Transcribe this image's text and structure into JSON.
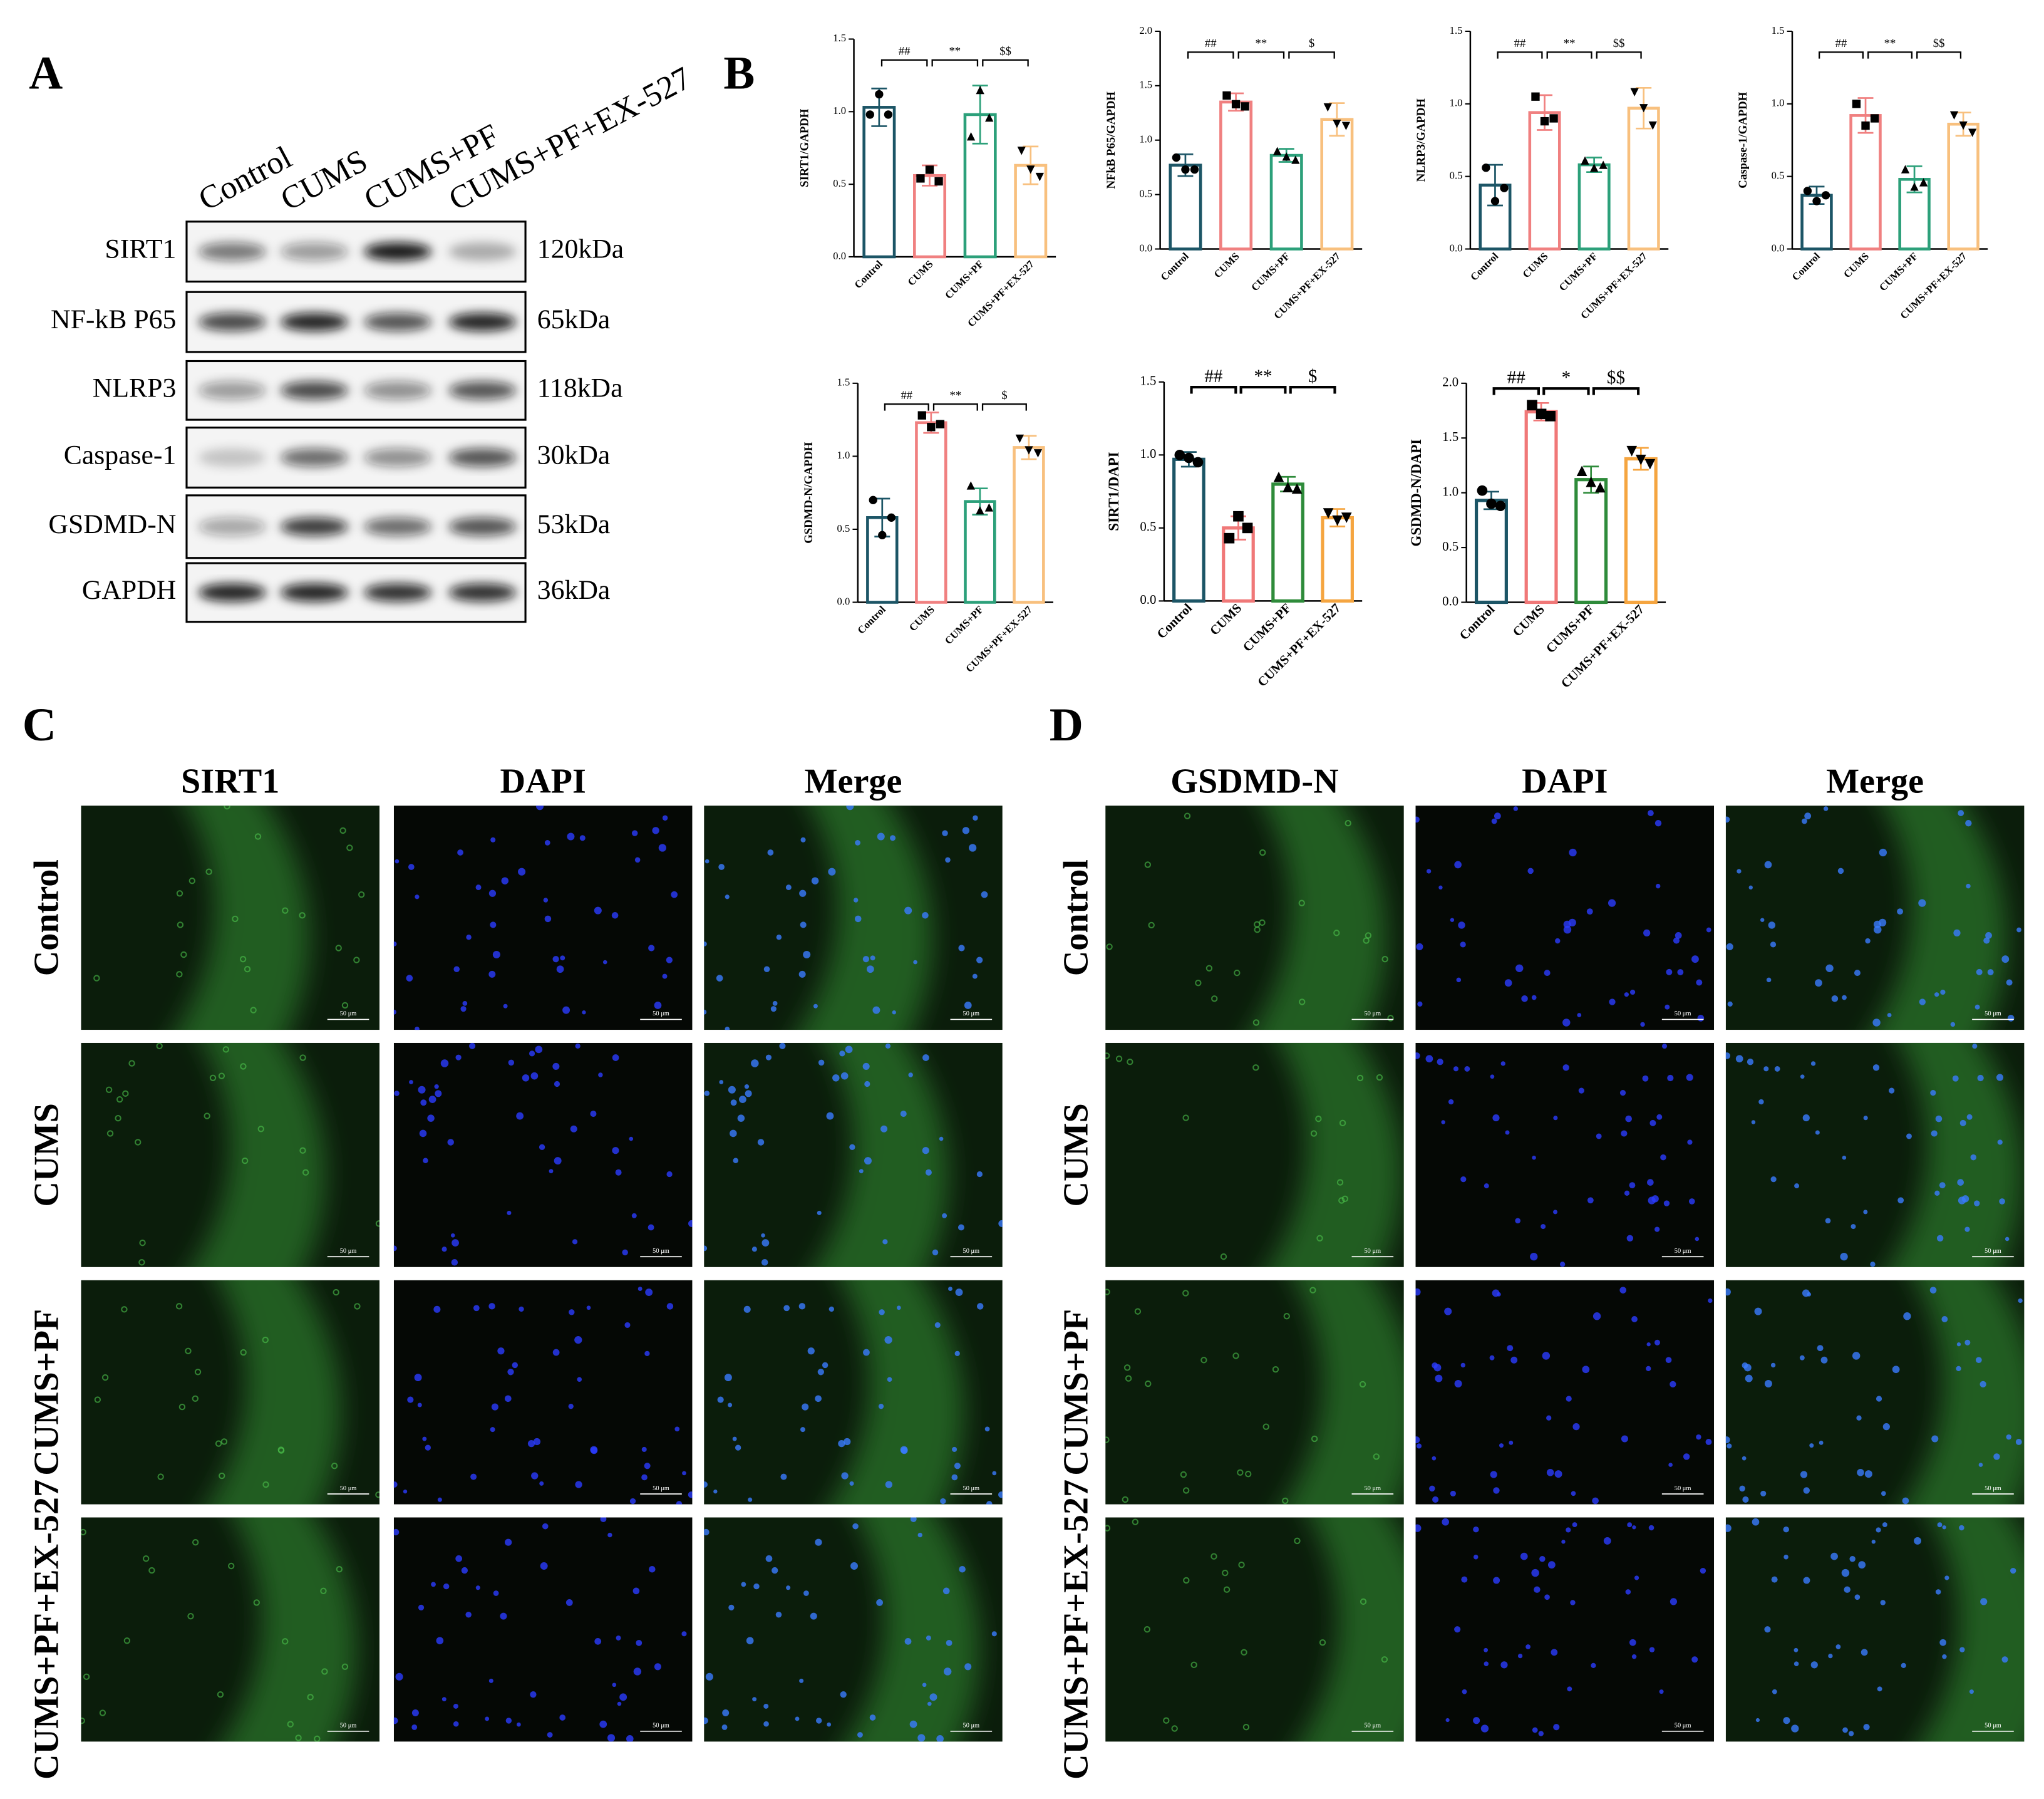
{
  "panel_a": {
    "label": "A",
    "lanes": [
      "Control",
      "CUMS",
      "CUMS+PF",
      "CUMS+PF+EX-527"
    ],
    "rows": [
      {
        "protein": "SIRT1",
        "size": "120kDa"
      },
      {
        "protein": "NF-kB P65",
        "size": "65kDa"
      },
      {
        "protein": "NLRP3",
        "size": "118kDa"
      },
      {
        "protein": "Caspase-1",
        "size": "30kDa"
      },
      {
        "protein": "GSDMD-N",
        "size": "53kDa"
      },
      {
        "protein": "GAPDH",
        "size": "36kDa"
      }
    ]
  },
  "panel_b": {
    "label": "B"
  },
  "chart_data": [
    {
      "type": "bar",
      "y_label": "SIRT1/GAPDH",
      "categories": [
        "Control",
        "CUMS",
        "CUMS+PF",
        "CUMS+PF+EX-527"
      ],
      "values": [
        1.03,
        0.56,
        0.98,
        0.63
      ],
      "errors": [
        0.13,
        0.07,
        0.2,
        0.13
      ],
      "points": [
        [
          0.98,
          1.12,
          0.98
        ],
        [
          0.54,
          0.6,
          0.52
        ],
        [
          0.83,
          1.15,
          0.96
        ],
        [
          0.73,
          0.6,
          0.55
        ]
      ],
      "colors": [
        "#1c5566",
        "#f08080",
        "#2ca07a",
        "#f8c07e"
      ],
      "ylim": [
        0,
        1.5
      ],
      "yticks": [
        {
          "value": 0,
          "label": "0.0"
        },
        0.5,
        {
          "value": 1,
          "label": "1.0"
        },
        1.5
      ],
      "annotations": [
        "##",
        "**",
        "$$"
      ]
    },
    {
      "type": "bar",
      "y_label": "NFkB P65/GAPDH",
      "categories": [
        "Control",
        "CUMS",
        "CUMS+PF",
        "CUMS+PF+EX-527"
      ],
      "values": [
        0.77,
        1.35,
        0.86,
        1.19
      ],
      "errors": [
        0.1,
        0.08,
        0.06,
        0.15
      ],
      "points": [
        [
          0.84,
          0.73,
          0.73
        ],
        [
          1.41,
          1.33,
          1.31
        ],
        [
          0.9,
          0.85,
          0.82
        ],
        [
          1.3,
          1.15,
          1.13
        ]
      ],
      "colors": [
        "#1c5566",
        "#f08080",
        "#2ca07a",
        "#f8c07e"
      ],
      "ylim": [
        0,
        2
      ],
      "yticks": [
        {
          "value": 0,
          "label": "0.0"
        },
        0.5,
        {
          "value": 1,
          "label": "1.0"
        },
        1.5,
        {
          "value": 2,
          "label": "2.0"
        }
      ],
      "annotations": [
        "##",
        "**",
        "$"
      ]
    },
    {
      "type": "bar",
      "y_label": "NLRP3/GAPDH",
      "categories": [
        "Control",
        "CUMS",
        "CUMS+PF",
        "CUMS+PF+EX-527"
      ],
      "values": [
        0.44,
        0.94,
        0.58,
        0.97
      ],
      "errors": [
        0.14,
        0.12,
        0.05,
        0.14
      ],
      "points": [
        [
          0.56,
          0.33,
          0.42
        ],
        [
          1.05,
          0.88,
          0.9
        ],
        [
          0.61,
          0.56,
          0.58
        ],
        [
          1.08,
          0.97,
          0.85
        ]
      ],
      "colors": [
        "#1c5566",
        "#f08080",
        "#2ca07a",
        "#f8c07e"
      ],
      "ylim": [
        0,
        1.5
      ],
      "yticks": [
        {
          "value": 0,
          "label": "0.0"
        },
        0.5,
        {
          "value": 1,
          "label": "1.0"
        },
        1.5
      ],
      "annotations": [
        "##",
        "**",
        "$$"
      ]
    },
    {
      "type": "bar",
      "y_label": "Caspase-1/GAPDH",
      "categories": [
        "Control",
        "CUMS",
        "CUMS+PF",
        "CUMS+PF+EX-527"
      ],
      "values": [
        0.37,
        0.92,
        0.48,
        0.86
      ],
      "errors": [
        0.06,
        0.12,
        0.09,
        0.08
      ],
      "points": [
        [
          0.4,
          0.33,
          0.37
        ],
        [
          1.0,
          0.85,
          0.9
        ],
        [
          0.55,
          0.43,
          0.46
        ],
        [
          0.92,
          0.85,
          0.8
        ]
      ],
      "colors": [
        "#1c5566",
        "#f08080",
        "#2ca07a",
        "#f8c07e"
      ],
      "ylim": [
        0,
        1.5
      ],
      "yticks": [
        {
          "value": 0,
          "label": "0.0"
        },
        0.5,
        {
          "value": 1,
          "label": "1.0"
        },
        1.5
      ],
      "annotations": [
        "##",
        "**",
        "$$"
      ]
    },
    {
      "type": "bar",
      "y_label": "GSDMD-N/GAPDH",
      "categories": [
        "Control",
        "CUMS",
        "CUMS+PF",
        "CUMS+PF+EX-527"
      ],
      "values": [
        0.58,
        1.23,
        0.69,
        1.06
      ],
      "errors": [
        0.13,
        0.07,
        0.09,
        0.08
      ],
      "points": [
        [
          0.7,
          0.46,
          0.58
        ],
        [
          1.28,
          1.2,
          1.22
        ],
        [
          0.8,
          0.63,
          0.65
        ],
        [
          1.12,
          1.04,
          1.02
        ]
      ],
      "colors": [
        "#1c5566",
        "#f08080",
        "#2ca07a",
        "#f8c07e"
      ],
      "ylim": [
        0,
        1.5
      ],
      "yticks": [
        {
          "value": 0,
          "label": "0.0"
        },
        0.5,
        {
          "value": 1,
          "label": "1.0"
        },
        1.5
      ],
      "annotations": [
        "##",
        "**",
        "$"
      ]
    },
    {
      "type": "bar",
      "y_label": "SIRT1/DAPI",
      "categories": [
        "Control",
        "CUMS",
        "CUMS+PF",
        "CUMS+PF+EX-527"
      ],
      "values": [
        0.97,
        0.5,
        0.8,
        0.57
      ],
      "errors": [
        0.05,
        0.08,
        0.05,
        0.06
      ],
      "points": [
        [
          1.0,
          0.98,
          0.95
        ],
        [
          0.43,
          0.58,
          0.5
        ],
        [
          0.85,
          0.78,
          0.77
        ],
        [
          0.6,
          0.55,
          0.57
        ]
      ],
      "colors": [
        "#1c5566",
        "#f07878",
        "#2e8b3a",
        "#f5a540"
      ],
      "ylim": [
        0,
        1.5
      ],
      "yticks": [
        {
          "value": 0,
          "label": "0.0"
        },
        0.5,
        {
          "value": 1,
          "label": "1.0"
        },
        1.5
      ],
      "annotations": [
        "##",
        "**",
        "$"
      ]
    },
    {
      "type": "bar",
      "y_label": "GSDMD-N/DAPI",
      "categories": [
        "Control",
        "CUMS",
        "CUMS+PF",
        "CUMS+PF+EX-527"
      ],
      "values": [
        0.93,
        1.74,
        1.12,
        1.31
      ],
      "errors": [
        0.08,
        0.08,
        0.12,
        0.1
      ],
      "points": [
        [
          1.02,
          0.9,
          0.88
        ],
        [
          1.8,
          1.72,
          1.7
        ],
        [
          1.2,
          1.1,
          1.05
        ],
        [
          1.38,
          1.3,
          1.26
        ]
      ],
      "colors": [
        "#1c5566",
        "#f07878",
        "#2e8b3a",
        "#f5a540"
      ],
      "ylim": [
        0,
        2
      ],
      "yticks": [
        {
          "value": 0,
          "label": "0.0"
        },
        0.5,
        {
          "value": 1,
          "label": "1.0"
        },
        1.5,
        {
          "value": 2,
          "label": "2.0"
        }
      ],
      "annotations": [
        "##",
        "*",
        "$$"
      ]
    }
  ],
  "panel_c": {
    "label": "C",
    "columns": [
      "SIRT1",
      "DAPI",
      "Merge"
    ],
    "rows": [
      "Control",
      "CUMS",
      "CUMS+PF",
      "CUMS+PF+EX-527"
    ],
    "scale_bar": "50 μm"
  },
  "panel_d": {
    "label": "D",
    "columns": [
      "GSDMD-N",
      "DAPI",
      "Merge"
    ],
    "rows": [
      "Control",
      "CUMS",
      "CUMS+PF",
      "CUMS+PF+EX-527"
    ],
    "scale_bar": "50 μm"
  }
}
